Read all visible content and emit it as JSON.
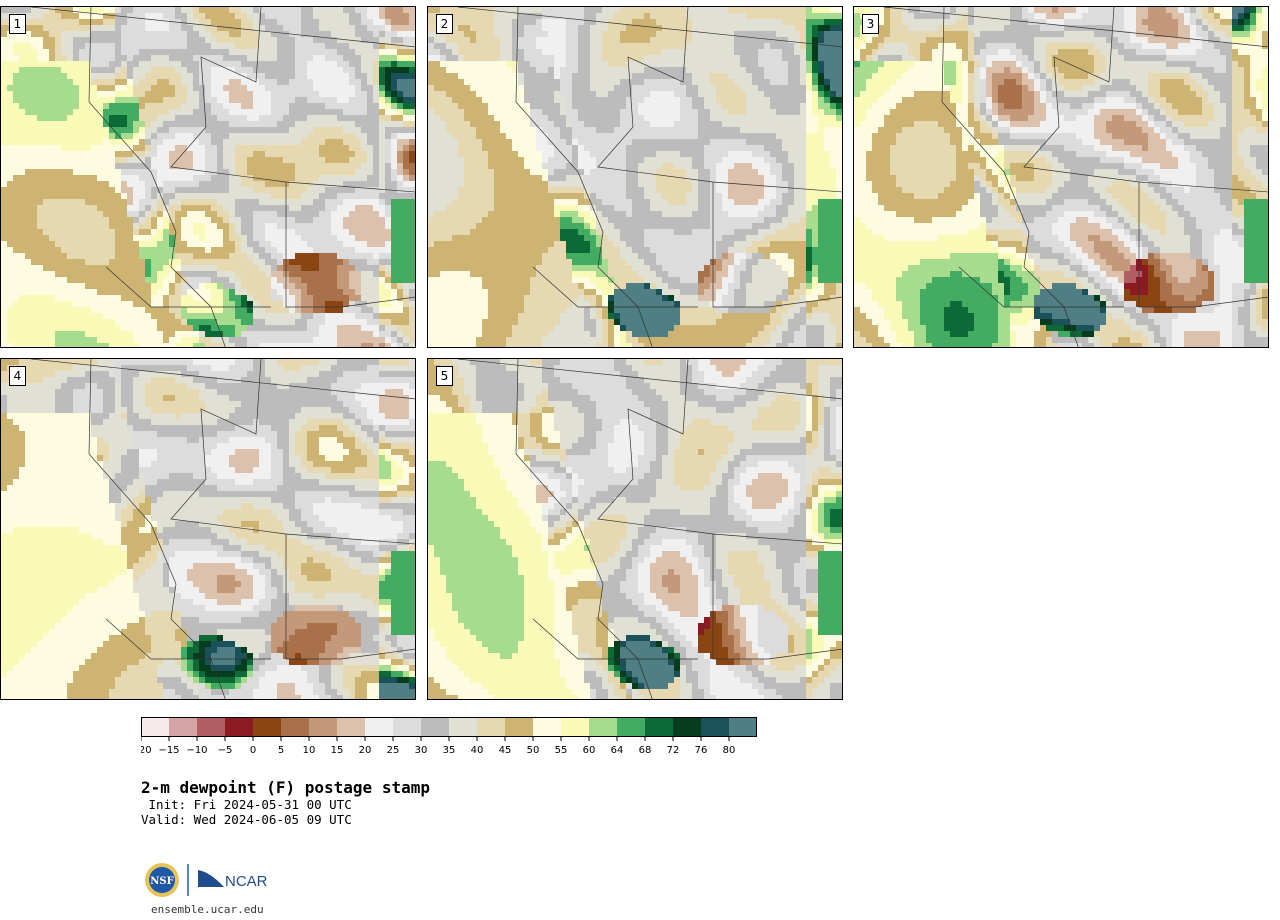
{
  "panels": [
    {
      "label": "1",
      "seed": 11
    },
    {
      "label": "2",
      "seed": 23
    },
    {
      "label": "3",
      "seed": 37
    },
    {
      "label": "4",
      "seed": 41
    },
    {
      "label": "5",
      "seed": 59
    }
  ],
  "colorbar": {
    "colors": [
      "#f7eaea",
      "#d4a3a6",
      "#b05e63",
      "#8b1a22",
      "#8a4512",
      "#a8714a",
      "#c4997a",
      "#dcc1ad",
      "#f0f0f0",
      "#dcdcdc",
      "#bcbcbc",
      "#e1e0d4",
      "#e6d8b0",
      "#cdb472",
      "#fdfbe0",
      "#f9f9b8",
      "#a7dc8f",
      "#43ac62",
      "#0c6a37",
      "#053d1e",
      "#1b5159",
      "#4f7e85"
    ],
    "ticks": [
      "-20",
      "-15",
      "-10",
      "-5",
      "0",
      "5",
      "10",
      "15",
      "20",
      "25",
      "30",
      "35",
      "40",
      "45",
      "50",
      "55",
      "60",
      "64",
      "68",
      "72",
      "76",
      "80"
    ]
  },
  "title": "2-m dewpoint (F) postage stamp",
  "init": " Init: Fri 2024-05-31 00 UTC",
  "valid": "Valid: Wed 2024-06-05 09 UTC",
  "logos": {
    "nsf": "NSF",
    "ncar": "NCAR"
  },
  "site": "ensemble.ucar.edu"
}
